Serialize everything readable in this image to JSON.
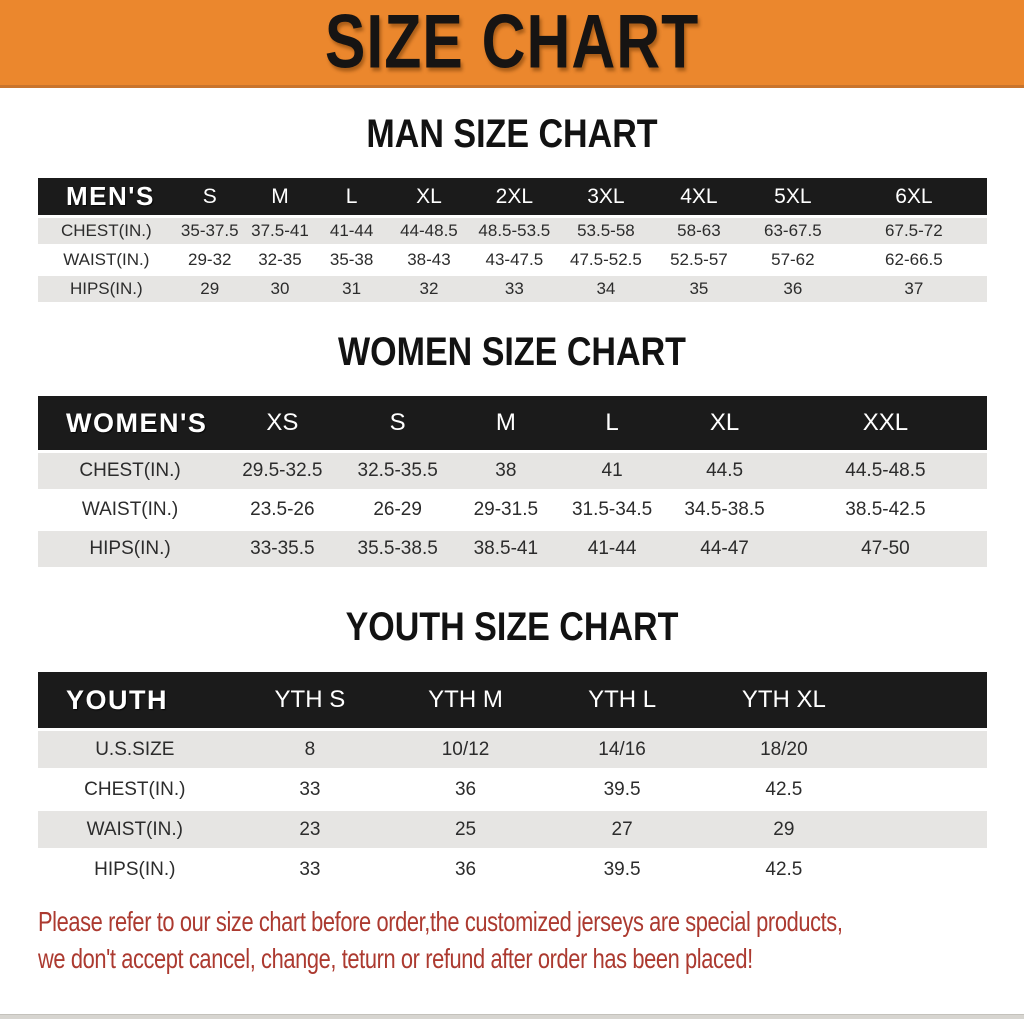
{
  "banner": {
    "title": "SIZE CHART"
  },
  "colors": {
    "banner_bg": "#EB872D",
    "table_header_bg": "#1B1B1B",
    "row_alt_bg": "#E6E5E3",
    "footer_text": "#AC3A30"
  },
  "sections": [
    {
      "id": "men",
      "heading": "MAN SIZE CHART",
      "corner_label": "MEN'S",
      "columns": [
        "S",
        "M",
        "L",
        "XL",
        "2XL",
        "3XL",
        "4XL",
        "5XL",
        "6XL"
      ],
      "rows": [
        {
          "label": "CHEST(IN.)",
          "values": [
            "35-37.5",
            "37.5-41",
            "41-44",
            "44-48.5",
            "48.5-53.5",
            "53.5-58",
            "58-63",
            "63-67.5",
            "67.5-72"
          ]
        },
        {
          "label": "WAIST(IN.)",
          "values": [
            "29-32",
            "32-35",
            "35-38",
            "38-43",
            "43-47.5",
            "47.5-52.5",
            "52.5-57",
            "57-62",
            "62-66.5"
          ]
        },
        {
          "label": "HIPS(IN.)",
          "values": [
            "29",
            "30",
            "31",
            "32",
            "33",
            "34",
            "35",
            "36",
            "37"
          ]
        }
      ]
    },
    {
      "id": "women",
      "heading": "WOMEN SIZE CHART",
      "corner_label": "WOMEN'S",
      "columns": [
        "XS",
        "S",
        "M",
        "L",
        "XL",
        "XXL"
      ],
      "rows": [
        {
          "label": "CHEST(IN.)",
          "values": [
            "29.5-32.5",
            "32.5-35.5",
            "38",
            "41",
            "44.5",
            "44.5-48.5"
          ]
        },
        {
          "label": "WAIST(IN.)",
          "values": [
            "23.5-26",
            "26-29",
            "29-31.5",
            "31.5-34.5",
            "34.5-38.5",
            "38.5-42.5"
          ]
        },
        {
          "label": "HIPS(IN.)",
          "values": [
            "33-35.5",
            "35.5-38.5",
            "38.5-41",
            "41-44",
            "44-47",
            "47-50"
          ]
        }
      ]
    },
    {
      "id": "youth",
      "heading": "YOUTH SIZE CHART",
      "corner_label": "YOUTH",
      "columns": [
        "YTH S",
        "YTH M",
        "YTH L",
        "YTH XL"
      ],
      "rows": [
        {
          "label": "U.S.SIZE",
          "values": [
            "8",
            "10/12",
            "14/16",
            "18/20"
          ]
        },
        {
          "label": "CHEST(IN.)",
          "values": [
            "33",
            "36",
            "39.5",
            "42.5"
          ]
        },
        {
          "label": "WAIST(IN.)",
          "values": [
            "23",
            "25",
            "27",
            "29"
          ]
        },
        {
          "label": "HIPS(IN.)",
          "values": [
            "33",
            "36",
            "39.5",
            "42.5"
          ]
        }
      ]
    }
  ],
  "footer": {
    "line1": "Please refer to our size chart before order,the customized jerseys are special products,",
    "line2": "we don't accept cancel, change, teturn or refund after order has been placed!"
  }
}
